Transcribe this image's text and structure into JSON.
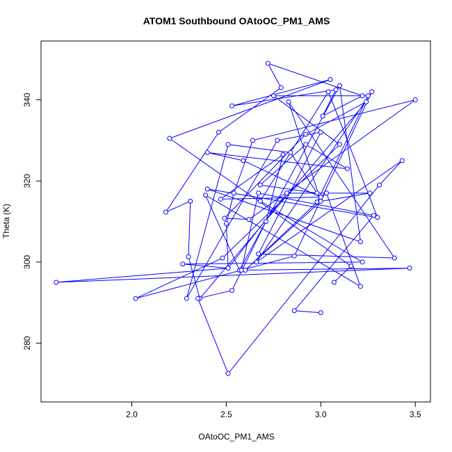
{
  "chart_data": {
    "type": "line",
    "title": "ATOM1 Southbound OAtoOC_PM1_AMS",
    "xlabel": "OAtoOC_PM1_AMS",
    "ylabel": "Theta (K)",
    "xlim": [
      1.52,
      3.58
    ],
    "ylim": [
      265.5,
      354.5
    ],
    "xticks": [
      2.0,
      2.5,
      3.0,
      3.5
    ],
    "xtick_labels": [
      "2.0",
      "2.5",
      "3.0",
      "3.5"
    ],
    "yticks": [
      280,
      300,
      320,
      340
    ],
    "ytick_labels": [
      "280",
      "300",
      "320",
      "340"
    ],
    "grid": false,
    "line_color": "#0000ff",
    "marker": "open-circle",
    "series": [
      {
        "x": [
          3.07,
          3.16,
          2.2,
          3.05,
          2.53,
          3.08,
          3.01,
          3.22,
          2.72,
          2.79,
          2.46,
          2.18,
          2.31,
          2.3,
          2.36,
          3.24,
          2.92,
          2.49,
          2.62,
          3.5,
          2.64,
          2.54,
          2.5,
          2.51,
          2.82,
          3.26,
          2.98,
          3.25,
          2.75,
          3.1,
          2.48,
          2.02,
          2.86,
          3.27,
          2.66,
          3.43,
          3.31,
          2.51,
          2.35,
          2.53,
          2.71,
          2.8,
          2.47,
          3.0,
          2.59,
          2.4,
          3.14,
          2.92,
          2.68,
          2.98,
          2.84,
          2.51,
          2.29,
          2.77,
          3.0,
          2.67,
          3.39,
          2.83,
          3.0,
          2.6,
          3.03,
          3.21,
          2.39,
          2.57,
          3.1,
          3.21,
          2.4,
          3.3,
          3.04,
          2.68,
          3.22,
          2.27,
          2.51,
          1.6,
          3.47,
          2.58,
          2.67,
          3.28,
          2.86,
          3.0
        ],
        "y": [
          295,
          299,
          330.5,
          345,
          338.5,
          342.5,
          336,
          341,
          349,
          343,
          332,
          312.3,
          315,
          301.3,
          291,
          339.5,
          331.5,
          310.8,
          310.5,
          340,
          330,
          317,
          309.5,
          298.5,
          317,
          317,
          314.8,
          341,
          341,
          329,
          301,
          291,
          301.5,
          342,
          300,
          325,
          319,
          272.5,
          291,
          293,
          310,
          326.5,
          315.5,
          316,
          325,
          327,
          323,
          329,
          319,
          317,
          327,
          329,
          291,
          330,
          332,
          302,
          301,
          339.5,
          315,
          298,
          317,
          294,
          316.5,
          298,
          343.5,
          305,
          318,
          311,
          342,
          315,
          300,
          299.5,
          298.5,
          295,
          298.5,
          298,
          317,
          311.5,
          288,
          287.5
        ]
      }
    ]
  }
}
